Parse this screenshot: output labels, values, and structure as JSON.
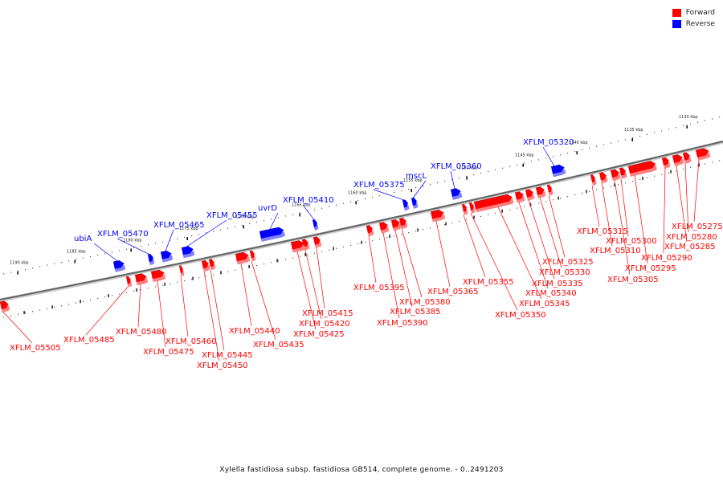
{
  "legend": {
    "forward": {
      "label": "Forward",
      "color": "#ff0000"
    },
    "reverse": {
      "label": "Reverse",
      "color": "#0000ff"
    }
  },
  "caption": "Xylella fastidiosa subsp. fastidiosa GB514, complete genome. - 0..2491203",
  "colors": {
    "forward": "#ff0000",
    "forward_shade": "#ff7f7f",
    "forward_dark": "#9a0000",
    "reverse": "#0000ff",
    "reverse_shade": "#7f7fff",
    "reverse_dark": "#00009a",
    "axis": "#666666"
  },
  "ticks": [
    {
      "label": "1130 kbp"
    },
    {
      "label": "1135 kbp"
    },
    {
      "label": "1140 kbp"
    },
    {
      "label": "1145 kbp"
    },
    {
      "label": "1150 kbp"
    },
    {
      "label": "1155 kbp"
    },
    {
      "label": "1160 kbp"
    },
    {
      "label": "1165 kbp"
    },
    {
      "label": "1170 kbp"
    },
    {
      "label": "1175 kbp"
    },
    {
      "label": "1180 kbp"
    },
    {
      "label": "1185 kbp"
    },
    {
      "label": "1190 kbp"
    }
  ],
  "reverse_genes": [
    {
      "label": "XFLM_05320"
    },
    {
      "label": "XFLM_05360"
    },
    {
      "label": "mscL"
    },
    {
      "label": "XFLM_05375"
    },
    {
      "label": "XFLM_05410"
    },
    {
      "label": "uvrD"
    },
    {
      "label": "XFLM_05455"
    },
    {
      "label": "XFLM_05465"
    },
    {
      "label": "XFLM_05470"
    },
    {
      "label": "ubiA"
    }
  ],
  "forward_genes": [
    {
      "label": "XFLM_05275"
    },
    {
      "label": "XFLM_05280"
    },
    {
      "label": "XFLM_05285"
    },
    {
      "label": "XFLM_05290"
    },
    {
      "label": "XFLM_05295"
    },
    {
      "label": "XFLM_05300"
    },
    {
      "label": "XFLM_05305"
    },
    {
      "label": "XFLM_05310"
    },
    {
      "label": "XFLM_05315"
    },
    {
      "label": "XFLM_05325"
    },
    {
      "label": "XFLM_05330"
    },
    {
      "label": "XFLM_05335"
    },
    {
      "label": "XFLM_05340"
    },
    {
      "label": "XFLM_05345"
    },
    {
      "label": "XFLM_05350"
    },
    {
      "label": "XFLM_05355"
    },
    {
      "label": "XFLM_05365"
    },
    {
      "label": "XFLM_05380"
    },
    {
      "label": "XFLM_05385"
    },
    {
      "label": "XFLM_05390"
    },
    {
      "label": "XFLM_05395"
    },
    {
      "label": "XFLM_05415"
    },
    {
      "label": "XFLM_05420"
    },
    {
      "label": "XFLM_05425"
    },
    {
      "label": "XFLM_05435"
    },
    {
      "label": "XFLM_05440"
    },
    {
      "label": "XFLM_05445"
    },
    {
      "label": "XFLM_05450"
    },
    {
      "label": "XFLM_05460"
    },
    {
      "label": "XFLM_05475"
    },
    {
      "label": "XFLM_05480"
    },
    {
      "label": "XFLM_05485"
    },
    {
      "label": "XFLM_05505"
    }
  ]
}
